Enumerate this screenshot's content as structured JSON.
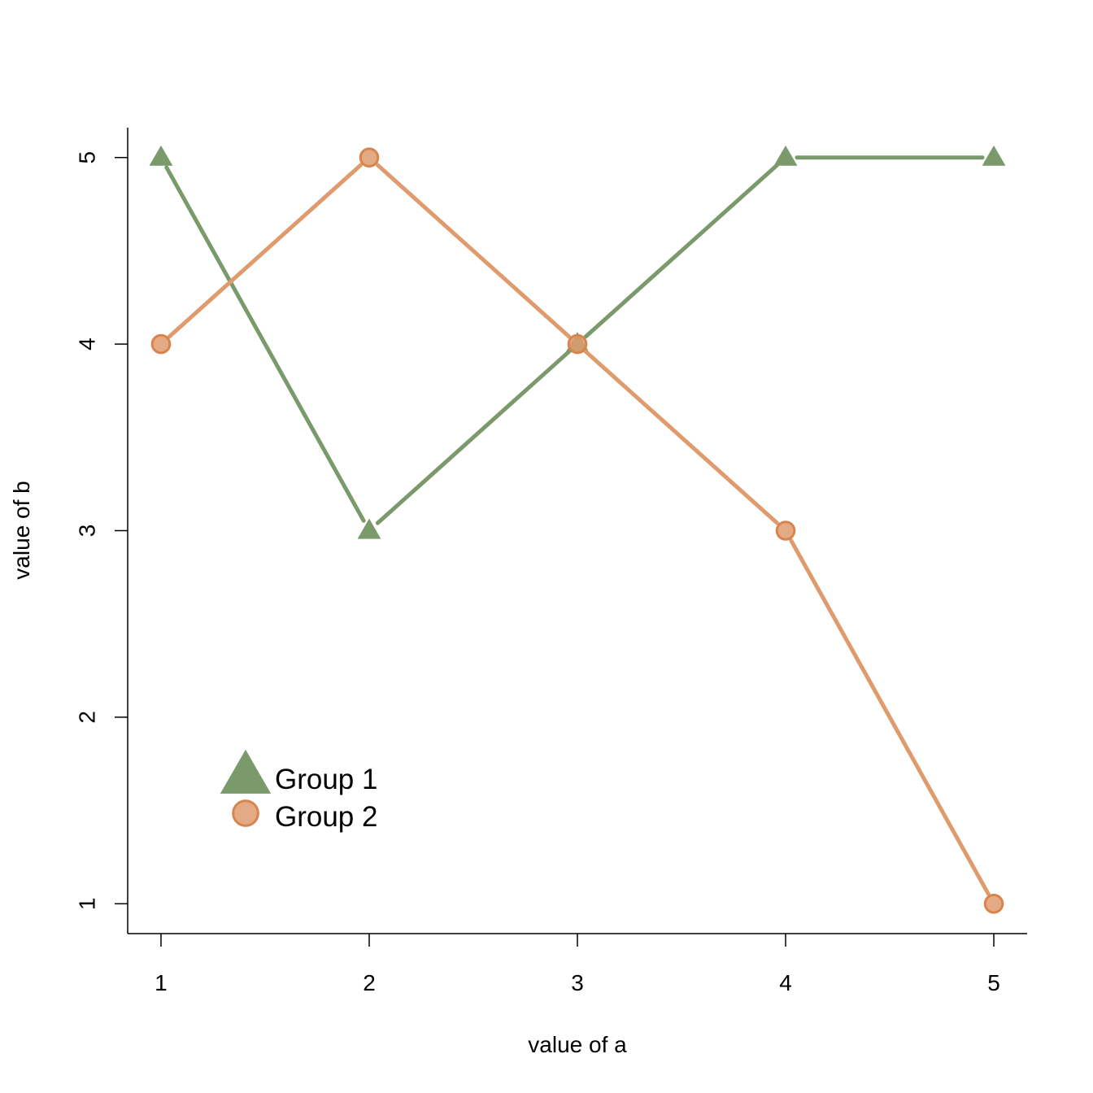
{
  "chart_data": {
    "type": "line",
    "title": "",
    "xlabel": "value of a",
    "ylabel": "value of b",
    "xlim": [
      0.84,
      5.16
    ],
    "ylim": [
      0.84,
      5.16
    ],
    "xticks": [
      1,
      2,
      3,
      4,
      5
    ],
    "yticks": [
      1,
      2,
      3,
      4,
      5
    ],
    "grid": false,
    "legend_position": "bottom-left",
    "series": [
      {
        "name": "Group 1",
        "marker": "triangle",
        "color": "#7a9a6b",
        "x": [
          1,
          2,
          3,
          4,
          5
        ],
        "y": [
          5,
          3,
          4,
          5,
          5
        ]
      },
      {
        "name": "Group 2",
        "marker": "circle",
        "color": "#df9b6d",
        "x": [
          1,
          2,
          3,
          4,
          5
        ],
        "y": [
          4,
          5,
          4,
          3,
          1
        ]
      }
    ]
  }
}
